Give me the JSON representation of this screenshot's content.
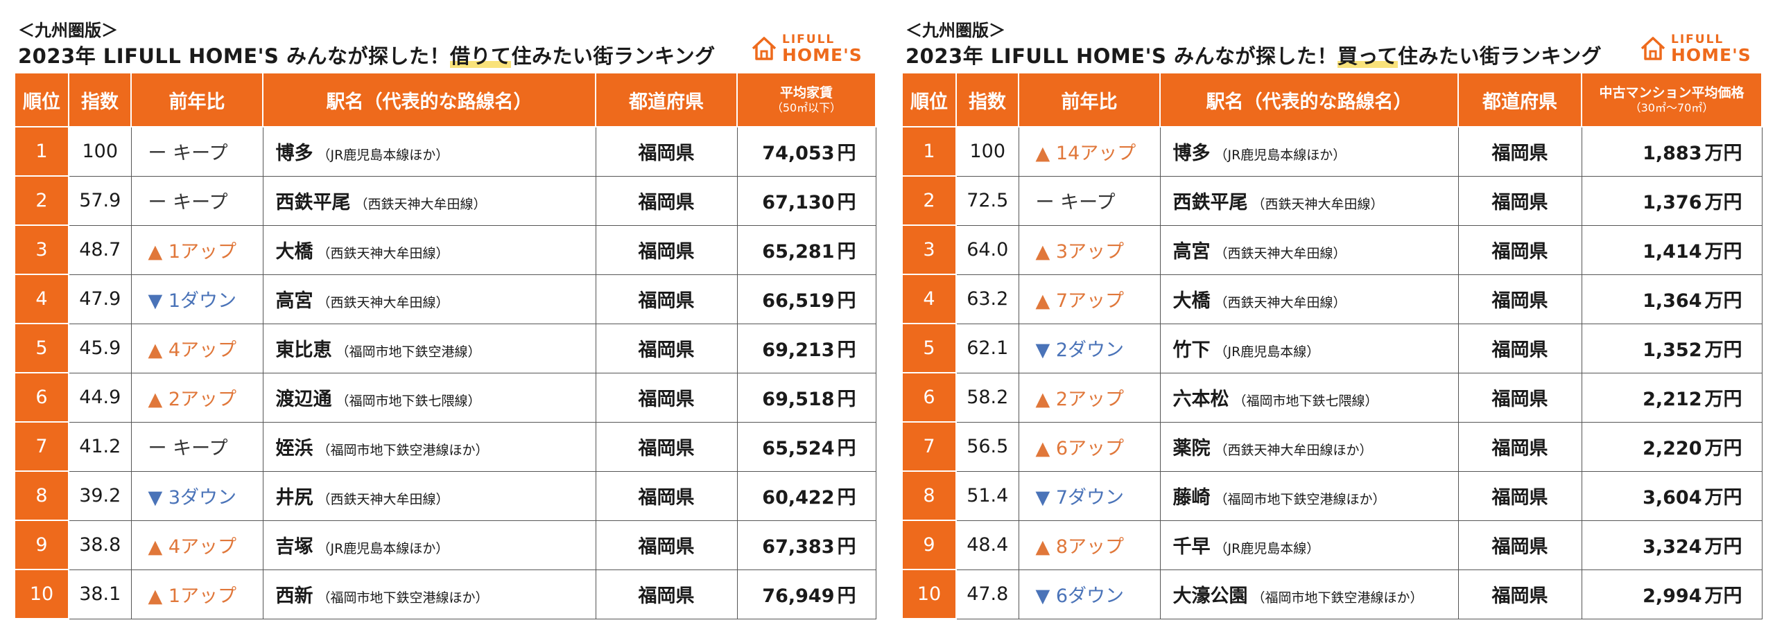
{
  "rent": {
    "region": "＜九州圏版＞",
    "title_pre": "2023年 LIFULL HOME'S みんなが探した！",
    "title_hl": "借りて",
    "title_post": "住みたい街ランキング",
    "headers": {
      "rank": "順位",
      "index": "指数",
      "change": "前年比",
      "station": "駅名（代表的な路線名）",
      "pref": "都道府県",
      "price": "平均家賃",
      "price_sub": "（50㎡以下）"
    },
    "rows": [
      {
        "rank": "1",
        "index": "100",
        "dir": "keep",
        "change": "ー キープ",
        "station": "博多",
        "line": "（JR鹿児島本線ほか）",
        "pref": "福岡県",
        "price": "74,053",
        "unit": "円"
      },
      {
        "rank": "2",
        "index": "57.9",
        "dir": "keep",
        "change": "ー キープ",
        "station": "西鉄平尾",
        "line": "（西鉄天神大牟田線）",
        "pref": "福岡県",
        "price": "67,130",
        "unit": "円"
      },
      {
        "rank": "3",
        "index": "48.7",
        "dir": "up",
        "change": "▲ 1アップ",
        "station": "大橋",
        "line": "（西鉄天神大牟田線）",
        "pref": "福岡県",
        "price": "65,281",
        "unit": "円"
      },
      {
        "rank": "4",
        "index": "47.9",
        "dir": "dn",
        "change": "▼ 1ダウン",
        "station": "高宮",
        "line": "（西鉄天神大牟田線）",
        "pref": "福岡県",
        "price": "66,519",
        "unit": "円"
      },
      {
        "rank": "5",
        "index": "45.9",
        "dir": "up",
        "change": "▲ 4アップ",
        "station": "東比恵",
        "line": "（福岡市地下鉄空港線）",
        "pref": "福岡県",
        "price": "69,213",
        "unit": "円"
      },
      {
        "rank": "6",
        "index": "44.9",
        "dir": "up",
        "change": "▲ 2アップ",
        "station": "渡辺通",
        "line": "（福岡市地下鉄七隈線）",
        "pref": "福岡県",
        "price": "69,518",
        "unit": "円"
      },
      {
        "rank": "7",
        "index": "41.2",
        "dir": "keep",
        "change": "ー キープ",
        "station": "姪浜",
        "line": "（福岡市地下鉄空港線ほか）",
        "pref": "福岡県",
        "price": "65,524",
        "unit": "円"
      },
      {
        "rank": "8",
        "index": "39.2",
        "dir": "dn",
        "change": "▼ 3ダウン",
        "station": "井尻",
        "line": "（西鉄天神大牟田線）",
        "pref": "福岡県",
        "price": "60,422",
        "unit": "円"
      },
      {
        "rank": "9",
        "index": "38.8",
        "dir": "up",
        "change": "▲ 4アップ",
        "station": "吉塚",
        "line": "（JR鹿児島本線ほか）",
        "pref": "福岡県",
        "price": "67,383",
        "unit": "円"
      },
      {
        "rank": "10",
        "index": "38.1",
        "dir": "up",
        "change": "▲ 1アップ",
        "station": "西新",
        "line": "（福岡市地下鉄空港線ほか）",
        "pref": "福岡県",
        "price": "76,949",
        "unit": "円"
      }
    ]
  },
  "buy": {
    "region": "＜九州圏版＞",
    "title_pre": "2023年 LIFULL HOME'S みんなが探した！",
    "title_hl": "買って",
    "title_post": "住みたい街ランキング",
    "headers": {
      "rank": "順位",
      "index": "指数",
      "change": "前年比",
      "station": "駅名（代表的な路線名）",
      "pref": "都道府県",
      "price": "中古マンション平均価格",
      "price_sub": "（30㎡～70㎡）"
    },
    "rows": [
      {
        "rank": "1",
        "index": "100",
        "dir": "up",
        "change": "▲ 14アップ",
        "station": "博多",
        "line": "（JR鹿児島本線ほか）",
        "pref": "福岡県",
        "price": "1,883",
        "unit": "万円"
      },
      {
        "rank": "2",
        "index": "72.5",
        "dir": "keep",
        "change": "ー キープ",
        "station": "西鉄平尾",
        "line": "（西鉄天神大牟田線）",
        "pref": "福岡県",
        "price": "1,376",
        "unit": "万円"
      },
      {
        "rank": "3",
        "index": "64.0",
        "dir": "up",
        "change": "▲ 3アップ",
        "station": "高宮",
        "line": "（西鉄天神大牟田線）",
        "pref": "福岡県",
        "price": "1,414",
        "unit": "万円"
      },
      {
        "rank": "4",
        "index": "63.2",
        "dir": "up",
        "change": "▲ 7アップ",
        "station": "大橋",
        "line": "（西鉄天神大牟田線）",
        "pref": "福岡県",
        "price": "1,364",
        "unit": "万円"
      },
      {
        "rank": "5",
        "index": "62.1",
        "dir": "dn",
        "change": "▼ 2ダウン",
        "station": "竹下",
        "line": "（JR鹿児島本線）",
        "pref": "福岡県",
        "price": "1,352",
        "unit": "万円"
      },
      {
        "rank": "6",
        "index": "58.2",
        "dir": "up",
        "change": "▲ 2アップ",
        "station": "六本松",
        "line": "（福岡市地下鉄七隈線）",
        "pref": "福岡県",
        "price": "2,212",
        "unit": "万円"
      },
      {
        "rank": "7",
        "index": "56.5",
        "dir": "up",
        "change": "▲ 6アップ",
        "station": "薬院",
        "line": "（西鉄天神大牟田線ほか）",
        "pref": "福岡県",
        "price": "2,220",
        "unit": "万円"
      },
      {
        "rank": "8",
        "index": "51.4",
        "dir": "dn",
        "change": "▼ 7ダウン",
        "station": "藤崎",
        "line": "（福岡市地下鉄空港線ほか）",
        "pref": "福岡県",
        "price": "3,604",
        "unit": "万円"
      },
      {
        "rank": "9",
        "index": "48.4",
        "dir": "up",
        "change": "▲ 8アップ",
        "station": "千早",
        "line": "（JR鹿児島本線）",
        "pref": "福岡県",
        "price": "3,324",
        "unit": "万円"
      },
      {
        "rank": "10",
        "index": "47.8",
        "dir": "dn",
        "change": "▼ 6ダウン",
        "station": "大濠公園",
        "line": "（福岡市地下鉄空港線ほか）",
        "pref": "福岡県",
        "price": "2,994",
        "unit": "万円"
      }
    ]
  },
  "logo": {
    "line1": "LIFULL",
    "line2": "HOME'S",
    "icon": "house-icon",
    "color": "#ee6a1c"
  },
  "colors": {
    "accent": "#ee6a1c",
    "up": "#e0773a",
    "down": "#4a73b8"
  }
}
